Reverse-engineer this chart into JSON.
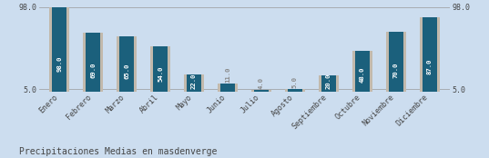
{
  "categories": [
    "Enero",
    "Febrero",
    "Marzo",
    "Abril",
    "Mayo",
    "Junio",
    "Julio",
    "Agosto",
    "Septiembre",
    "Octubre",
    "Noviembre",
    "Diciembre"
  ],
  "values": [
    98.0,
    69.0,
    65.0,
    54.0,
    22.0,
    11.0,
    4.0,
    5.0,
    20.0,
    48.0,
    70.0,
    87.0
  ],
  "bar_color": "#1b607c",
  "bg_bar_color": "#c2b9ac",
  "background_color": "#ccddef",
  "text_color": "#ffffff",
  "outline_text_color": "#888888",
  "label_color": "#444444",
  "title": "Precipitaciones Medias en masdenverge",
  "title_fontsize": 7.0,
  "ylim_min": 5.0,
  "ylim_max": 98.0,
  "yticks": [
    5.0,
    98.0
  ],
  "bar_width": 0.45,
  "bg_bar_width": 0.6,
  "value_fontsize": 5.2,
  "tick_fontsize": 6.0,
  "grid_color": "#999999"
}
